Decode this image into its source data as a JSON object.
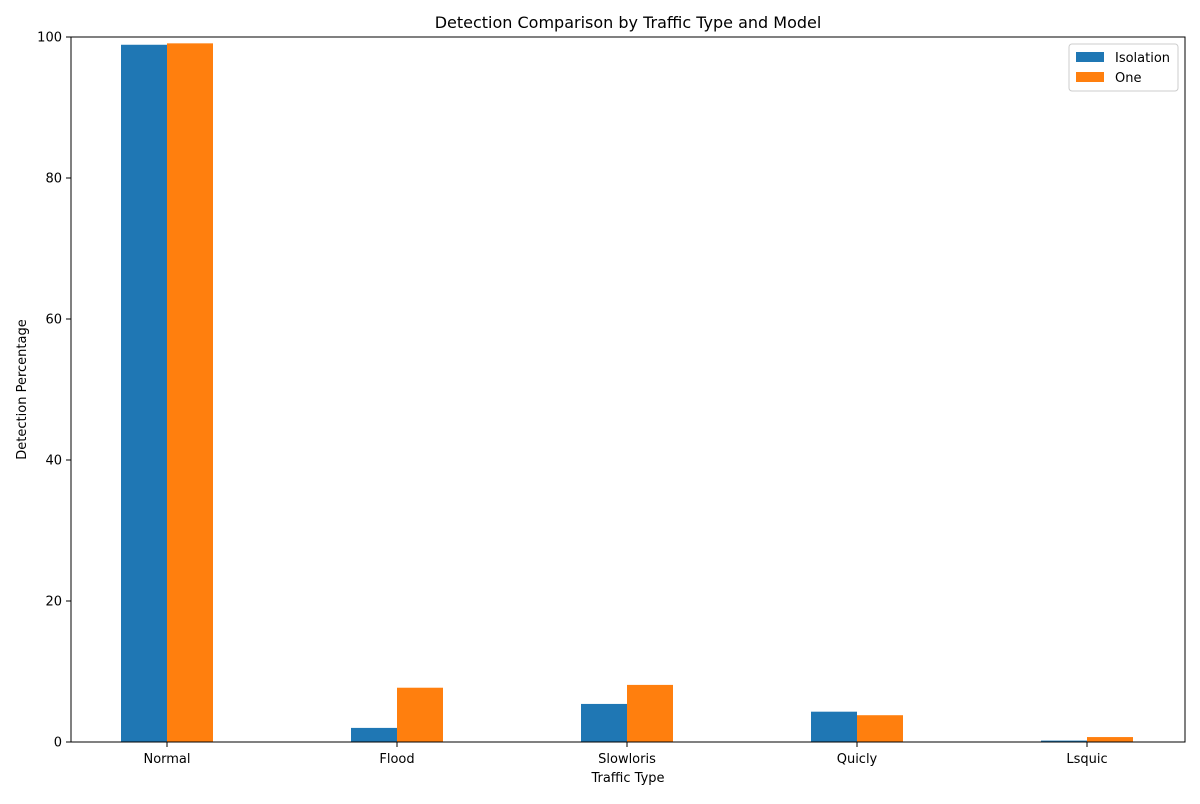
{
  "chart_data": {
    "type": "bar",
    "title": "Detection Comparison by Traffic Type and Model",
    "xlabel": "Traffic Type",
    "ylabel": "Detection Percentage",
    "categories": [
      "Normal",
      "Flood",
      "Slowloris",
      "Quicly",
      "Lsquic"
    ],
    "series": [
      {
        "name": "Isolation",
        "color": "#1f77b4",
        "values": [
          98.9,
          2.0,
          5.4,
          4.3,
          0.2
        ]
      },
      {
        "name": "One",
        "color": "#ff7f0e",
        "values": [
          99.1,
          7.7,
          8.1,
          3.8,
          0.7
        ]
      }
    ],
    "ylim": [
      0,
      100
    ],
    "yticks": [
      0,
      20,
      40,
      60,
      80,
      100
    ],
    "grid": false,
    "legend_position": "top-right"
  }
}
